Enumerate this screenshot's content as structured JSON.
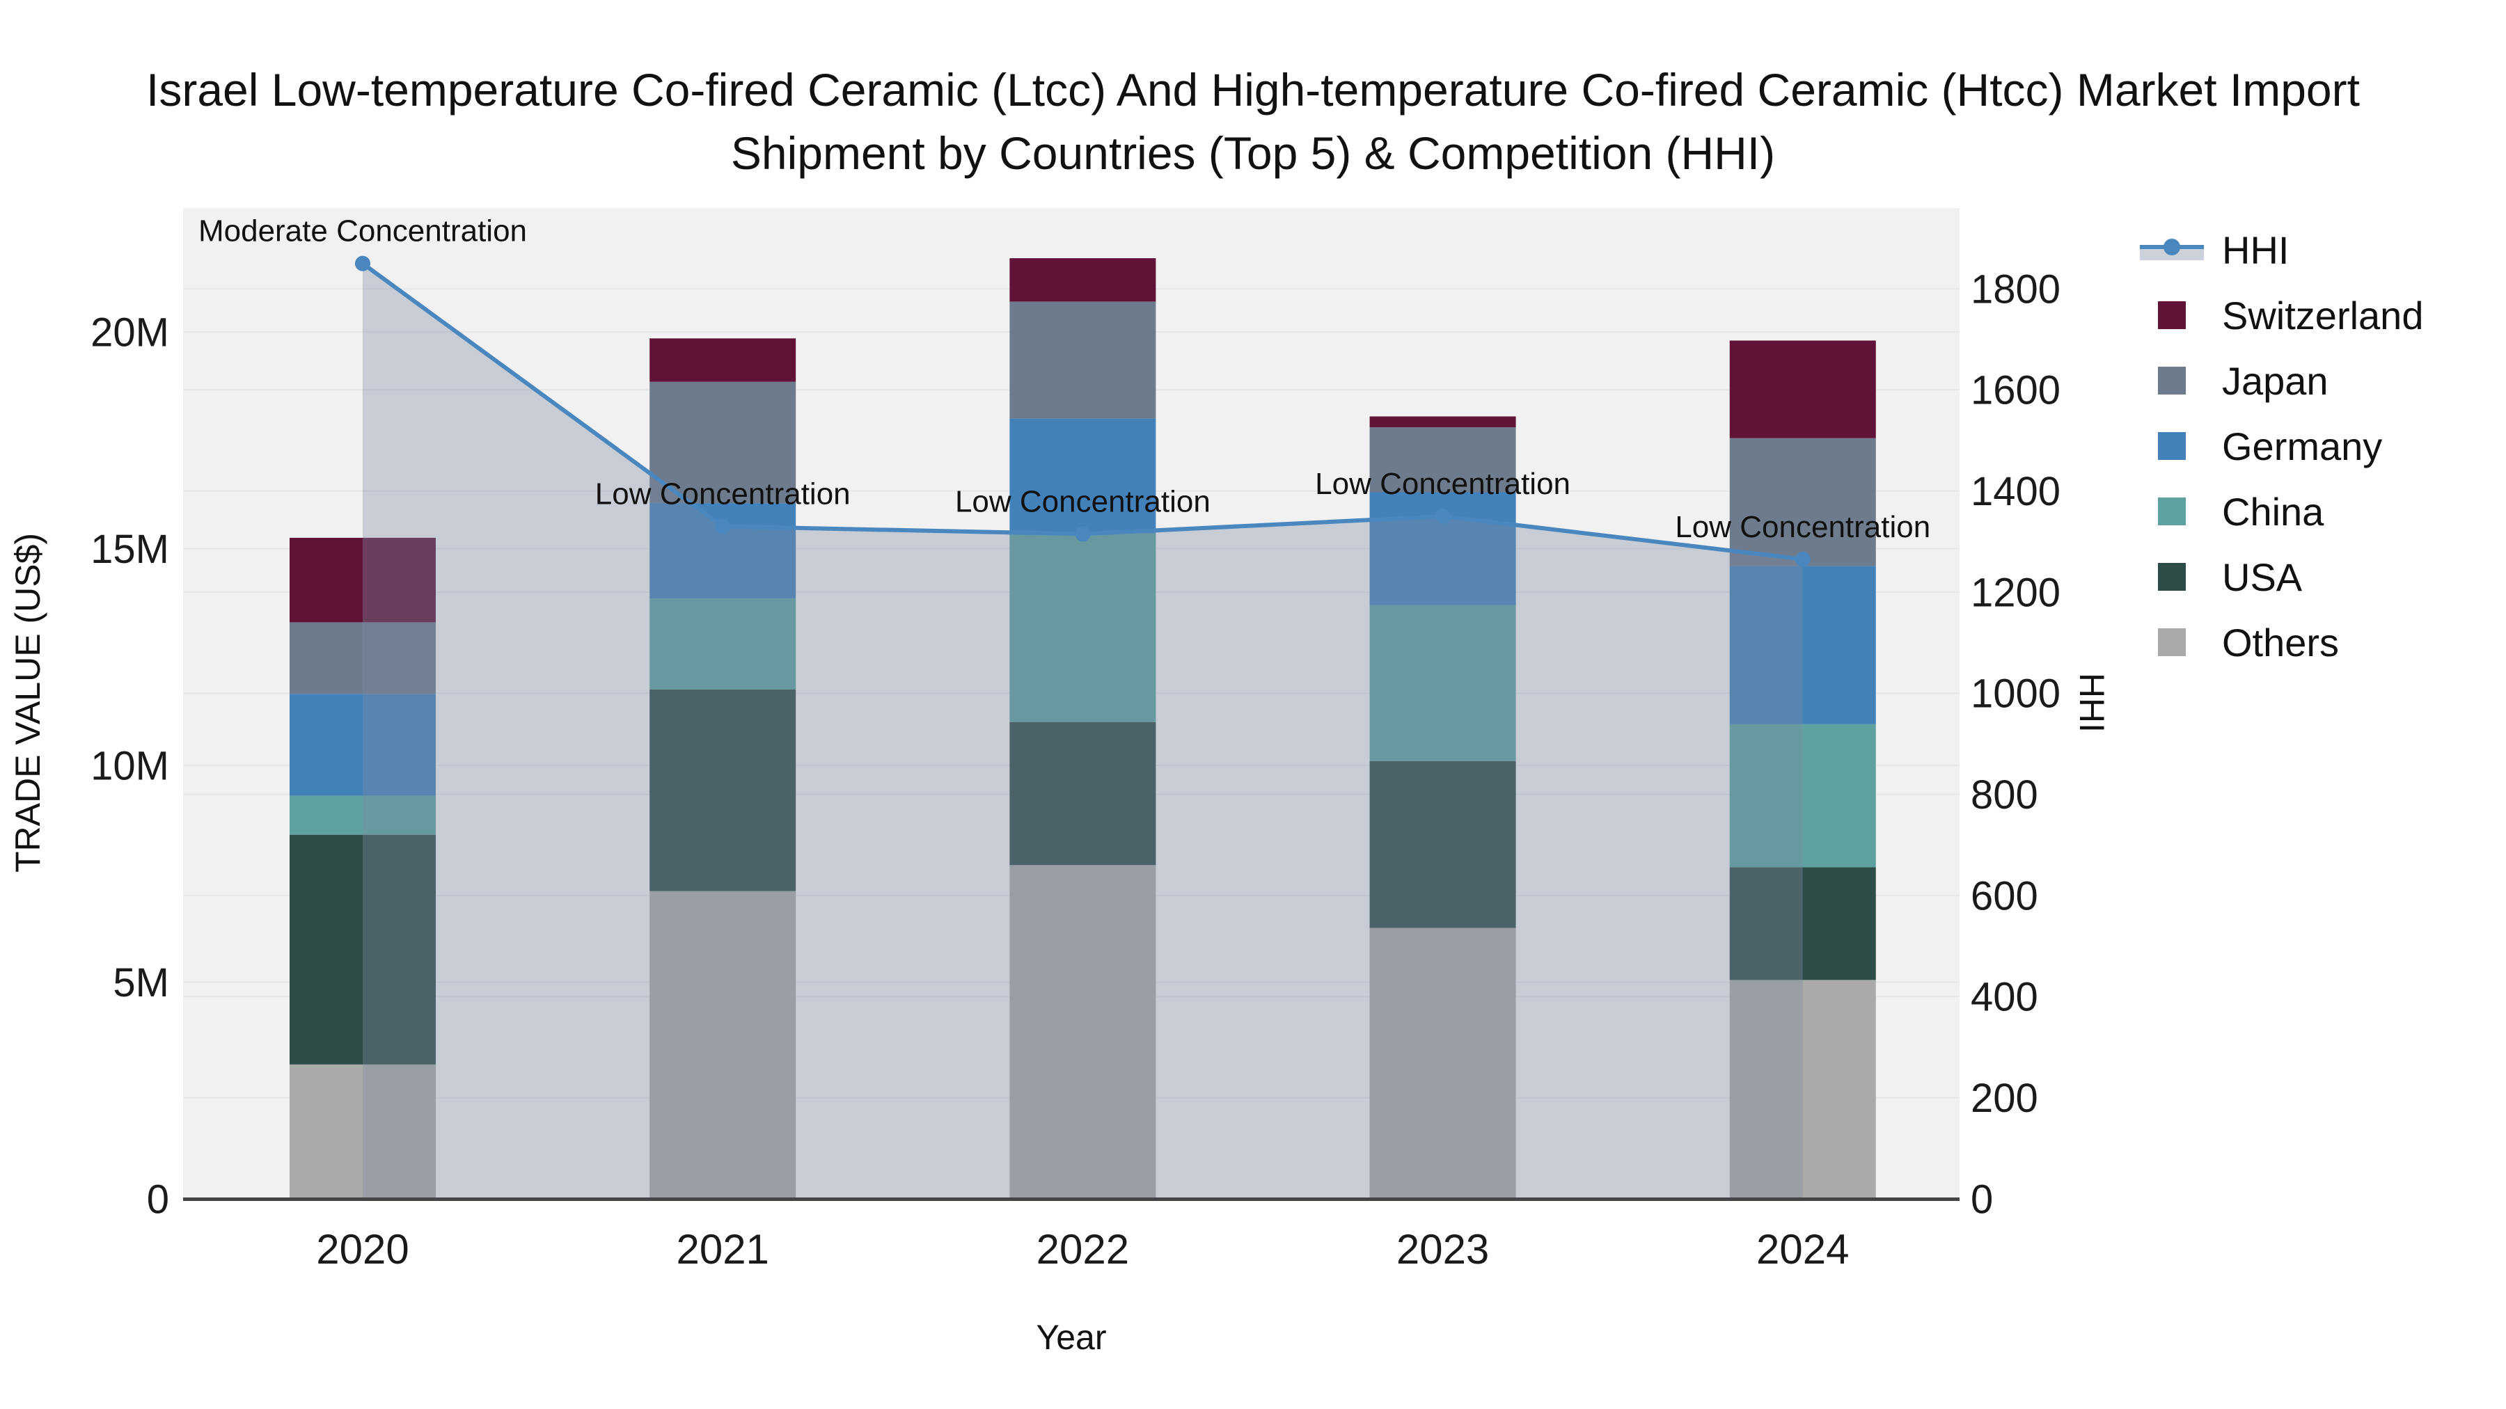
{
  "page": {
    "background_color": "#ffffff",
    "plot_background_color": "#f1f1f2",
    "gridline_color": "#e6e7e9",
    "axis_line_color": "#454545",
    "text_color": "#1a1a1a"
  },
  "chart_data": {
    "type": "bar",
    "subtype": "stacked-bar-with-dual-axis-line",
    "title": "Israel Low-temperature Co-fired Ceramic (Ltcc) And High-temperature Co-fired Ceramic (Htcc) Market Import Shipment by Countries (Top 5) & Competition (HHI)",
    "xlabel": "Year",
    "ylabel_left": "TRADE VALUE (US$)",
    "ylabel_right": "HHI",
    "categories": [
      "2020",
      "2021",
      "2022",
      "2023",
      "2024"
    ],
    "bar_value_unit": "million US$",
    "series": [
      {
        "name": "Others",
        "color": "#a9aba8",
        "values": [
          3.1,
          7.1,
          7.7,
          6.25,
          5.05
        ]
      },
      {
        "name": "USA",
        "color": "#2e4c48",
        "values": [
          5.3,
          4.65,
          3.3,
          3.85,
          2.6
        ]
      },
      {
        "name": "China",
        "color": "#5fa1a0",
        "values": [
          0.9,
          2.1,
          4.35,
          3.6,
          3.3
        ]
      },
      {
        "name": "Germany",
        "color": "#4381ba",
        "values": [
          2.35,
          2.2,
          2.65,
          2.6,
          3.65
        ]
      },
      {
        "name": "Japan",
        "color": "#6e7b8c",
        "values": [
          1.65,
          2.8,
          2.7,
          1.5,
          2.95
        ]
      },
      {
        "name": "Switzerland",
        "color": "#611337",
        "values": [
          1.95,
          1.0,
          1.0,
          0.25,
          2.25
        ]
      }
    ],
    "stack_totals": [
      15.25,
      19.85,
      21.7,
      18.05,
      19.8
    ],
    "hhi_line": {
      "name": "HHI",
      "color": "#4a87be",
      "area_fill_color": "rgba(125,138,162,0.36)",
      "values": [
        1850,
        1330,
        1315,
        1350,
        1265
      ]
    },
    "annotations": [
      {
        "category": "2020",
        "text": "Moderate Concentration"
      },
      {
        "category": "2021",
        "text": "Low Concentration"
      },
      {
        "category": "2022",
        "text": "Low Concentration"
      },
      {
        "category": "2023",
        "text": "Low Concentration"
      },
      {
        "category": "2024",
        "text": "Low Concentration"
      }
    ],
    "y_left": {
      "tick_labels": [
        "0",
        "5M",
        "10M",
        "15M",
        "20M"
      ],
      "tick_values": [
        0,
        5,
        10,
        15,
        20
      ]
    },
    "y_right": {
      "tick_labels": [
        "0",
        "200",
        "400",
        "600",
        "800",
        "1000",
        "1200",
        "1400",
        "1600",
        "1800"
      ],
      "tick_values": [
        0,
        200,
        400,
        600,
        800,
        1000,
        1200,
        1400,
        1600,
        1800
      ]
    },
    "grid": true,
    "legend_position": "right"
  },
  "legend": {
    "items": [
      {
        "label": "HHI",
        "type": "line",
        "color": "#4a87be"
      },
      {
        "label": "Switzerland",
        "type": "square",
        "color": "#611337"
      },
      {
        "label": "Japan",
        "type": "square",
        "color": "#6e7b8c"
      },
      {
        "label": "Germany",
        "type": "square",
        "color": "#4381ba"
      },
      {
        "label": "China",
        "type": "square",
        "color": "#5fa1a0"
      },
      {
        "label": "USA",
        "type": "square",
        "color": "#2e4c48"
      },
      {
        "label": "Others",
        "type": "square",
        "color": "#a9aba8"
      }
    ]
  }
}
